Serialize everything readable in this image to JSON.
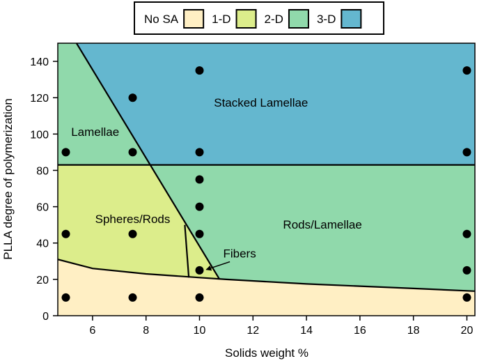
{
  "chart_data": {
    "type": "scatter",
    "title": "",
    "xlabel": "Solids weight %",
    "ylabel": "PLLA degree of polymerization",
    "xlim": [
      4.7,
      20.3
    ],
    "ylim": [
      0,
      150
    ],
    "xticks": [
      6,
      8,
      10,
      12,
      14,
      16,
      18,
      20
    ],
    "yticks": [
      0,
      20,
      40,
      60,
      80,
      100,
      120,
      140
    ],
    "grid": false,
    "legend": {
      "placement": "top",
      "entries": [
        {
          "label": "No SA",
          "color": "#ffefc4"
        },
        {
          "label": "1-D",
          "color": "#dced8b"
        },
        {
          "label": "2-D",
          "color": "#90d9ab"
        },
        {
          "label": "3-D",
          "color": "#64b7cf"
        }
      ]
    },
    "regions": [
      {
        "label": "Stacked Lamellae",
        "class": "3-D",
        "color": "#64b7cf",
        "label_at": [
          12.3,
          115
        ]
      },
      {
        "label": "Lamellae",
        "class": "2-D",
        "color": "#90d9ab",
        "label_at": [
          5.2,
          99
        ]
      },
      {
        "label": "Rods/Lamellae",
        "class": "2-D",
        "color": "#90d9ab",
        "label_at": [
          14.6,
          48
        ]
      },
      {
        "label": "Spheres/Rods",
        "class": "1-D",
        "color": "#dced8b",
        "label_at": [
          7.5,
          51
        ]
      },
      {
        "label": "No SA",
        "class": "No SA",
        "color": "#ffefc4",
        "label_at": null
      }
    ],
    "annotations": [
      {
        "text": "Fibers",
        "at": [
          11.5,
          32
        ],
        "arrow_to": [
          10.1,
          25
        ]
      }
    ],
    "boundaries": {
      "horizontal_y": 83,
      "diagonal": [
        [
          5.4,
          150
        ],
        [
          10.75,
          20
        ]
      ],
      "inner_line": [
        [
          9.45,
          50
        ],
        [
          9.6,
          21
        ]
      ],
      "bottom_curve": [
        [
          4.7,
          31
        ],
        [
          6,
          26
        ],
        [
          8,
          23
        ],
        [
          10,
          21
        ],
        [
          11,
          20
        ],
        [
          14,
          17.5
        ],
        [
          18,
          15
        ],
        [
          20.3,
          13.5
        ]
      ]
    },
    "points": [
      {
        "x": 5,
        "y": 10
      },
      {
        "x": 5,
        "y": 45
      },
      {
        "x": 5,
        "y": 90
      },
      {
        "x": 7.5,
        "y": 10
      },
      {
        "x": 7.5,
        "y": 45
      },
      {
        "x": 7.5,
        "y": 90
      },
      {
        "x": 7.5,
        "y": 120
      },
      {
        "x": 10,
        "y": 10
      },
      {
        "x": 10,
        "y": 25
      },
      {
        "x": 10,
        "y": 45
      },
      {
        "x": 10,
        "y": 60
      },
      {
        "x": 10,
        "y": 75
      },
      {
        "x": 10,
        "y": 90
      },
      {
        "x": 10,
        "y": 135
      },
      {
        "x": 20,
        "y": 10
      },
      {
        "x": 20,
        "y": 25
      },
      {
        "x": 20,
        "y": 45
      },
      {
        "x": 20,
        "y": 90
      },
      {
        "x": 20,
        "y": 135
      }
    ]
  }
}
